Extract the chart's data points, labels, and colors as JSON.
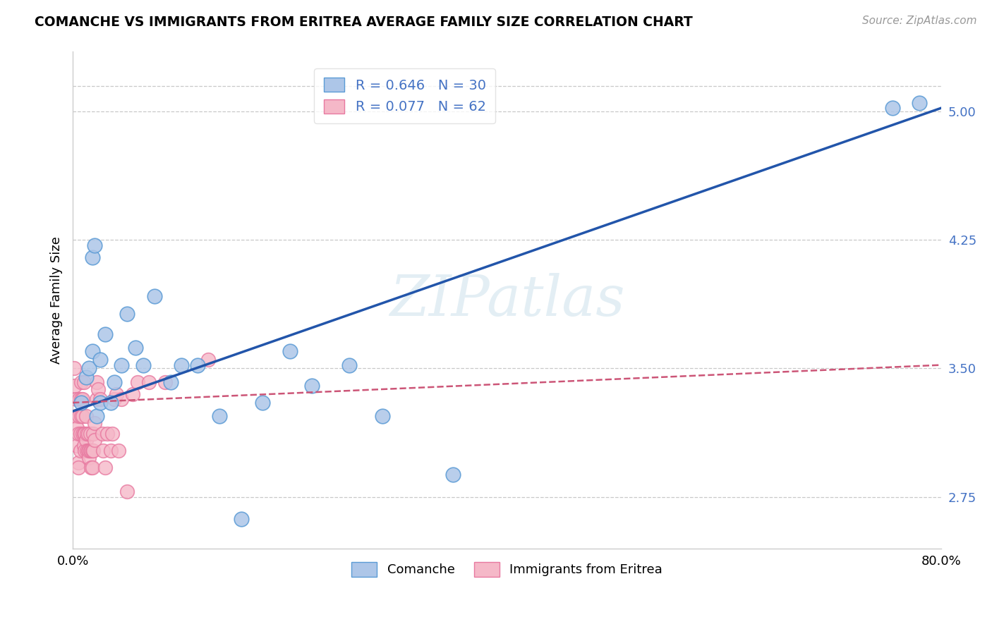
{
  "title": "COMANCHE VS IMMIGRANTS FROM ERITREA AVERAGE FAMILY SIZE CORRELATION CHART",
  "source": "Source: ZipAtlas.com",
  "ylabel": "Average Family Size",
  "xlim": [
    0.0,
    0.8
  ],
  "ylim": [
    2.45,
    5.35
  ],
  "yticks": [
    2.75,
    3.5,
    4.25,
    5.0
  ],
  "ytick_labels": [
    "2.75",
    "3.50",
    "4.25",
    "5.00"
  ],
  "xticks": [
    0.0,
    0.8
  ],
  "xticklabels": [
    "0.0%",
    "80.0%"
  ],
  "ytick_color": "#4472c4",
  "background_color": "#ffffff",
  "grid_color": "#c8c8c8",
  "comanche_color": "#adc6e8",
  "eritrea_color": "#f5b8c8",
  "comanche_edge": "#5b9bd5",
  "eritrea_edge": "#e879a0",
  "trend_blue_color": "#2255aa",
  "trend_pink_color": "#cc5577",
  "R_comanche": 0.646,
  "N_comanche": 30,
  "R_eritrea": 0.077,
  "N_eritrea": 62,
  "legend_label_comanche": "Comanche",
  "legend_label_eritrea": "Immigrants from Eritrea",
  "watermark": "ZIPatlas",
  "blue_trend_x0": 0.0,
  "blue_trend_y0": 3.25,
  "blue_trend_x1": 0.8,
  "blue_trend_y1": 5.02,
  "pink_trend_x0": 0.0,
  "pink_trend_y0": 3.3,
  "pink_trend_x1": 0.8,
  "pink_trend_y1": 3.52,
  "comanche_x": [
    0.008,
    0.012,
    0.015,
    0.018,
    0.018,
    0.02,
    0.022,
    0.025,
    0.025,
    0.03,
    0.035,
    0.038,
    0.045,
    0.05,
    0.058,
    0.065,
    0.075,
    0.09,
    0.1,
    0.115,
    0.135,
    0.155,
    0.175,
    0.2,
    0.22,
    0.255,
    0.285,
    0.35,
    0.755,
    0.78
  ],
  "comanche_y": [
    3.3,
    3.45,
    3.5,
    3.6,
    4.15,
    4.22,
    3.22,
    3.3,
    3.55,
    3.7,
    3.3,
    3.42,
    3.52,
    3.82,
    3.62,
    3.52,
    3.92,
    3.42,
    3.52,
    3.52,
    3.22,
    2.62,
    3.3,
    3.6,
    3.4,
    3.52,
    3.22,
    2.88,
    5.02,
    5.05
  ],
  "eritrea_x": [
    0.001,
    0.002,
    0.003,
    0.003,
    0.004,
    0.004,
    0.005,
    0.005,
    0.005,
    0.006,
    0.006,
    0.007,
    0.007,
    0.008,
    0.008,
    0.008,
    0.009,
    0.009,
    0.009,
    0.01,
    0.01,
    0.01,
    0.011,
    0.011,
    0.012,
    0.012,
    0.013,
    0.013,
    0.014,
    0.014,
    0.015,
    0.015,
    0.016,
    0.016,
    0.017,
    0.017,
    0.018,
    0.018,
    0.019,
    0.019,
    0.02,
    0.02,
    0.022,
    0.022,
    0.023,
    0.025,
    0.027,
    0.028,
    0.03,
    0.032,
    0.035,
    0.036,
    0.038,
    0.04,
    0.042,
    0.045,
    0.05,
    0.055,
    0.06,
    0.07,
    0.085,
    0.125
  ],
  "eritrea_y": [
    3.5,
    3.4,
    3.32,
    3.22,
    3.15,
    3.05,
    2.95,
    2.92,
    3.12,
    3.22,
    3.32,
    3.02,
    3.12,
    3.22,
    3.32,
    3.42,
    3.12,
    3.22,
    3.32,
    3.05,
    3.12,
    3.42,
    3.02,
    3.12,
    3.08,
    3.22,
    3.02,
    3.12,
    3.02,
    3.12,
    2.98,
    3.02,
    3.02,
    3.12,
    2.92,
    3.02,
    2.92,
    3.02,
    3.02,
    3.12,
    3.08,
    3.18,
    3.32,
    3.42,
    3.38,
    3.32,
    3.12,
    3.02,
    2.92,
    3.12,
    3.02,
    3.12,
    3.32,
    3.35,
    3.02,
    3.32,
    2.78,
    3.35,
    3.42,
    3.42,
    3.42,
    3.55
  ]
}
